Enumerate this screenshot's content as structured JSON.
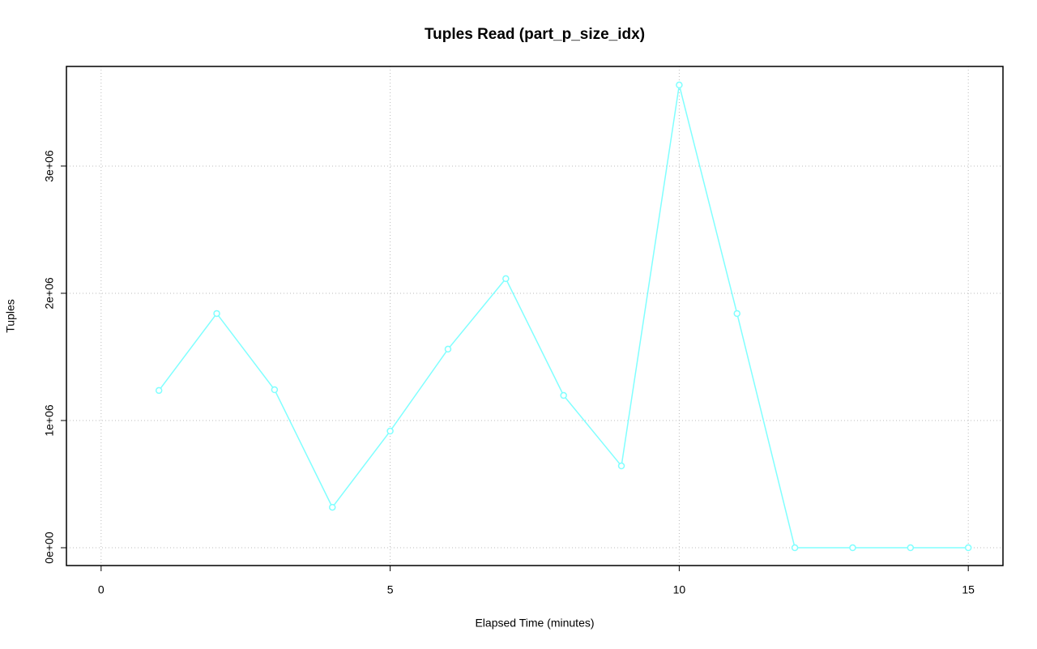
{
  "chart_data": {
    "type": "line",
    "title": "Tuples Read (part_p_size_idx)",
    "x_label": "Elapsed Time (minutes)",
    "y_label": "Tuples",
    "x": [
      1,
      2,
      3,
      4,
      5,
      6,
      7,
      8,
      9,
      10,
      11,
      12,
      13,
      14,
      15
    ],
    "series": [
      {
        "name": "Tuples",
        "color": "#80ffff",
        "values": [
          1236000,
          1841000,
          1242000,
          318000,
          917000,
          1561000,
          2115000,
          1197000,
          643000,
          3637000,
          1841000,
          0,
          0,
          0,
          0
        ]
      }
    ],
    "xlim": [
      -0.6,
      15.6
    ],
    "xticks": [
      0,
      5,
      10,
      15
    ],
    "ylim": [
      -140000,
      3783000
    ],
    "yticks": [
      {
        "value": 0,
        "label": "0e+00"
      },
      {
        "value": 1000000,
        "label": "1e+06"
      },
      {
        "value": 2000000,
        "label": "2e+06"
      },
      {
        "value": 3000000,
        "label": "3e+06"
      }
    ],
    "grid": true,
    "markers": true
  }
}
